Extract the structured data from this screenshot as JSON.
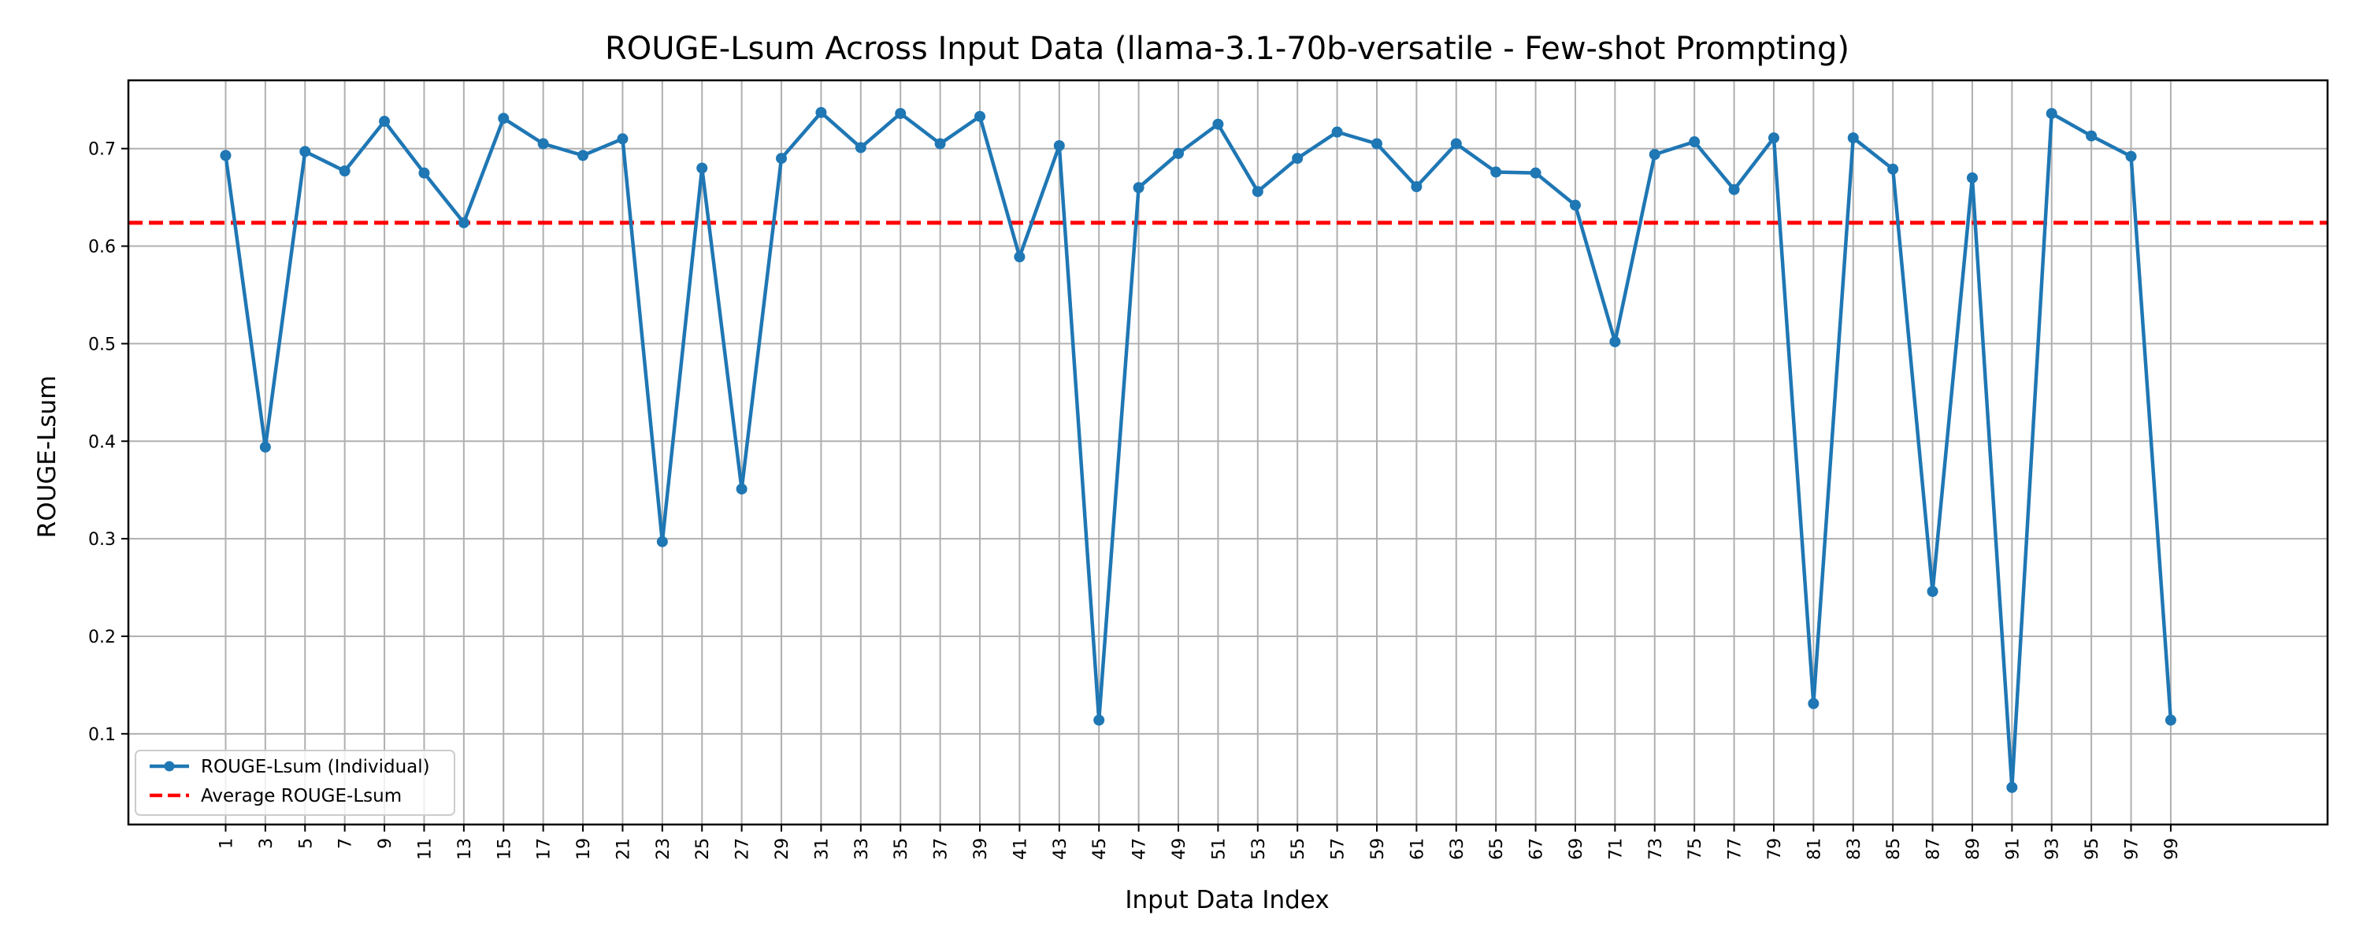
{
  "chart_data": {
    "type": "line",
    "title": "ROUGE-Lsum Across Input Data (llama-3.1-70b-versatile - Few-shot Prompting)",
    "xlabel": "Input Data Index",
    "ylabel": "ROUGE-Lsum",
    "x": [
      1,
      3,
      5,
      7,
      9,
      11,
      13,
      15,
      17,
      19,
      21,
      23,
      25,
      27,
      29,
      31,
      33,
      35,
      37,
      39,
      41,
      43,
      45,
      47,
      49,
      51,
      53,
      55,
      57,
      59,
      61,
      63,
      65,
      67,
      69,
      71,
      73,
      75,
      77,
      79,
      81,
      83,
      85,
      87,
      89,
      91,
      93,
      95,
      97,
      99
    ],
    "xticks": [
      "1",
      "3",
      "5",
      "7",
      "9",
      "11",
      "13",
      "15",
      "17",
      "19",
      "21",
      "23",
      "25",
      "27",
      "29",
      "31",
      "33",
      "35",
      "37",
      "39",
      "41",
      "43",
      "45",
      "47",
      "49",
      "51",
      "53",
      "55",
      "57",
      "59",
      "61",
      "63",
      "65",
      "67",
      "69",
      "71",
      "73",
      "75",
      "77",
      "79",
      "81",
      "83",
      "85",
      "87",
      "89",
      "91",
      "93",
      "95",
      "97",
      "99"
    ],
    "xlim": [
      -3.9,
      106.9
    ],
    "yticks": [
      "0.1",
      "0.2",
      "0.3",
      "0.4",
      "0.5",
      "0.6",
      "0.7"
    ],
    "ytick_values": [
      0.1,
      0.2,
      0.3,
      0.4,
      0.5,
      0.6,
      0.7
    ],
    "ylim": [
      0.007,
      0.77
    ],
    "grid": true,
    "legend_position": "bottom-left",
    "series": [
      {
        "name": "ROUGE-Lsum (Individual)",
        "color": "#1f77b4",
        "style": "solid-with-markers",
        "values": [
          0.693,
          0.394,
          0.697,
          0.677,
          0.728,
          0.675,
          0.624,
          0.731,
          0.705,
          0.693,
          0.71,
          0.297,
          0.68,
          0.351,
          0.69,
          0.737,
          0.701,
          0.736,
          0.705,
          0.733,
          0.589,
          0.703,
          0.114,
          0.66,
          0.695,
          0.725,
          0.656,
          0.69,
          0.717,
          0.705,
          0.661,
          0.705,
          0.676,
          0.675,
          0.642,
          0.502,
          0.694,
          0.707,
          0.658,
          0.711,
          0.131,
          0.711,
          0.679,
          0.246,
          0.67,
          0.045,
          0.736,
          0.713,
          0.692,
          0.114
        ]
      },
      {
        "name": "Average ROUGE-Lsum",
        "color": "#ff0000",
        "style": "dashed",
        "value": 0.624
      }
    ]
  }
}
